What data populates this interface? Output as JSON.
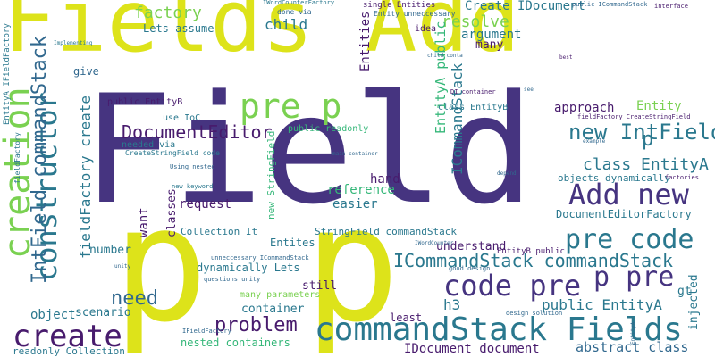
{
  "palette": {
    "background": "#ffffff",
    "yellow": "#dde31a",
    "indigo": "#463480",
    "purple": "#481b6d",
    "teal": "#2a788e",
    "green": "#35b779",
    "lime": "#7ad151",
    "blue": "#31688e"
  },
  "words": [
    {
      "text": "Fields Add"
    },
    {
      "text": "Field"
    },
    {
      "text": "p p"
    },
    {
      "text": "creation"
    },
    {
      "text": "constructor"
    },
    {
      "text": "IntField commandStack"
    },
    {
      "text": "pre p"
    },
    {
      "text": "DocumentEditor"
    },
    {
      "text": "commandStack Fields"
    },
    {
      "text": "code pre"
    },
    {
      "text": "p pre"
    },
    {
      "text": "Add new"
    },
    {
      "text": "pre code"
    },
    {
      "text": "new IntField"
    },
    {
      "text": "class EntityA"
    },
    {
      "text": "ICommandStack commandStack"
    },
    {
      "text": "create"
    },
    {
      "text": "problem"
    },
    {
      "text": "need"
    },
    {
      "text": "factory"
    },
    {
      "text": "Lets assume"
    },
    {
      "text": "child"
    },
    {
      "text": "resolve"
    },
    {
      "text": "argument"
    },
    {
      "text": "many"
    },
    {
      "text": "Create IDocument"
    },
    {
      "text": "Entities"
    },
    {
      "text": "EntityA public"
    },
    {
      "text": "ICommandStack"
    },
    {
      "text": "approach"
    },
    {
      "text": "Entity"
    },
    {
      "text": "p"
    },
    {
      "text": "public EntityA"
    },
    {
      "text": "h3"
    },
    {
      "text": "IDocument document"
    },
    {
      "text": "abstract class"
    },
    {
      "text": "fieldFactory create"
    },
    {
      "text": "scenario"
    },
    {
      "text": "object"
    },
    {
      "text": "number"
    },
    {
      "text": "give"
    },
    {
      "text": "want"
    },
    {
      "text": "classes"
    },
    {
      "text": "request"
    },
    {
      "text": "hand"
    },
    {
      "text": "easier"
    },
    {
      "text": "reference"
    },
    {
      "text": "container"
    },
    {
      "text": "still"
    },
    {
      "text": "nested containers"
    },
    {
      "text": "dynamically Lets"
    },
    {
      "text": "understand"
    },
    {
      "text": "Entites"
    },
    {
      "text": "Collection It"
    },
    {
      "text": "StringField commandStack"
    },
    {
      "text": "new StringField"
    },
    {
      "text": "DocumentEditorFactory"
    },
    {
      "text": "objects dynamically"
    },
    {
      "text": "injected"
    },
    {
      "text": "gt"
    },
    {
      "text": "least"
    },
    {
      "text": "readonly Collection"
    },
    {
      "text": "EntityA IFieldFactory"
    },
    {
      "text": "public EntityB"
    },
    {
      "text": "use IoC"
    },
    {
      "text": "needed via"
    },
    {
      "text": "public readonly"
    },
    {
      "text": "class EntityB"
    },
    {
      "text": "idea"
    },
    {
      "text": "single Entities"
    },
    {
      "text": "Entity unneccessary"
    },
    {
      "text": "done via"
    },
    {
      "text": "IWordCounterFactory"
    },
    {
      "text": "interface"
    },
    {
      "text": "CreateStringField code"
    },
    {
      "text": "new keyword"
    },
    {
      "text": "Using nested"
    },
    {
      "text": "many parameters"
    },
    {
      "text": "unneccessary ICommandStack"
    },
    {
      "text": "questions unity"
    },
    {
      "text": "EntityB public"
    },
    {
      "text": "public ICommandStack"
    },
    {
      "text": "fieldFactory CreateStringField"
    },
    {
      "text": "factories"
    },
    {
      "text": "design solution"
    },
    {
      "text": "good design"
    },
    {
      "text": "DI container"
    },
    {
      "text": "main container"
    },
    {
      "text": "IWordCounter"
    },
    {
      "text": "IFieldFactory"
    },
    {
      "text": "Implementing"
    },
    {
      "text": "EntityA"
    },
    {
      "text": "unity"
    },
    {
      "text": "fieldFactory"
    },
    {
      "text": "depend"
    },
    {
      "text": "example"
    },
    {
      "text": "see"
    },
    {
      "text": "best"
    },
    {
      "text": "child conta"
    }
  ]
}
